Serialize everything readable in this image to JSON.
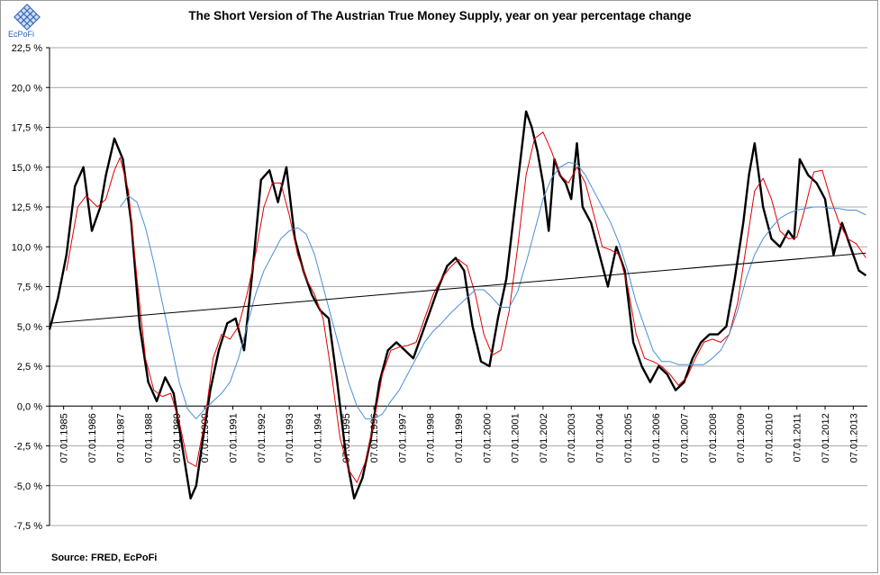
{
  "logo": {
    "text": "EcPoFi",
    "icon": "diamond-grid-logo",
    "color": "#2a62b8"
  },
  "source": "Source: FRED,  EcPoFi",
  "chart_data": {
    "type": "line",
    "title": "The Short Version of The Austrian True Money Supply, year on year percentage change",
    "xlabel": "",
    "ylabel": "",
    "ylim": [
      -7.5,
      22.5
    ],
    "xlim": [
      "01.01.1985",
      "31.12.2013"
    ],
    "grid": "horizontal",
    "legend": "none",
    "y_ticks": [
      "22,5 %",
      "20,0 %",
      "17,5 %",
      "15,0 %",
      "12,5 %",
      "10,0 %",
      "7,5 %",
      "5,0 %",
      "2,5 %",
      "0,0 %",
      "-2,5 %",
      "-5,0 %",
      "-7,5 %"
    ],
    "x_ticks": [
      "07.01.1985",
      "07.01.1986",
      "07.01.1987",
      "07.01.1988",
      "07.01.1989",
      "07.01.1990",
      "07.01.1991",
      "07.01.1992",
      "07.01.1993",
      "07.01.1994",
      "07.01.1995",
      "07.01.1996",
      "07.01.1997",
      "07.01.1998",
      "07.01.1999",
      "07.01.2000",
      "07.01.2001",
      "07.01.2002",
      "07.01.2003",
      "07.01.2004",
      "07.01.2005",
      "07.01.2006",
      "07.01.2007",
      "07.01.2008",
      "07.01.2009",
      "07.01.2010",
      "07.01.2011",
      "07.01.2012",
      "07.01.2013"
    ],
    "series": [
      {
        "color": "#000000",
        "x": [
          1985.0,
          1985.3,
          1985.6,
          1985.9,
          1986.2,
          1986.5,
          1986.8,
          1987.0,
          1987.3,
          1987.6,
          1987.9,
          1988.2,
          1988.5,
          1988.8,
          1989.1,
          1989.4,
          1989.7,
          1990.0,
          1990.2,
          1990.4,
          1990.7,
          1991.0,
          1991.3,
          1991.6,
          1991.9,
          1992.2,
          1992.5,
          1992.8,
          1993.1,
          1993.4,
          1993.7,
          1994.0,
          1994.3,
          1994.6,
          1994.9,
          1995.2,
          1995.5,
          1995.8,
          1996.1,
          1996.4,
          1996.7,
          1997.0,
          1997.3,
          1997.6,
          1997.9,
          1998.2,
          1998.5,
          1998.8,
          1999.1,
          1999.4,
          1999.7,
          2000.0,
          2000.3,
          2000.6,
          2000.9,
          2001.2,
          2001.5,
          2001.7,
          2001.9,
          2002.1,
          2002.3,
          2002.5,
          2002.7,
          2002.9,
          2003.1,
          2003.3,
          2003.5,
          2003.7,
          2003.9,
          2004.2,
          2004.5,
          2004.8,
          2005.1,
          2005.4,
          2005.7,
          2006.0,
          2006.3,
          2006.6,
          2006.9,
          2007.2,
          2007.5,
          2007.8,
          2008.1,
          2008.4,
          2008.7,
          2009.0,
          2009.3,
          2009.6,
          2009.8,
          2010.0,
          2010.3,
          2010.6,
          2010.9,
          2011.2,
          2011.4,
          2011.6,
          2011.9,
          2012.2,
          2012.5,
          2012.8,
          2013.1,
          2013.4,
          2013.7,
          2013.95
        ],
        "values": [
          4.8,
          6.8,
          9.5,
          13.8,
          15.0,
          11.0,
          12.5,
          14.5,
          16.8,
          15.5,
          11.5,
          5.0,
          1.5,
          0.3,
          1.8,
          0.8,
          -2.5,
          -5.8,
          -5.0,
          -2.5,
          1.0,
          3.5,
          5.2,
          5.5,
          3.5,
          8.5,
          14.2,
          14.8,
          12.8,
          15.0,
          10.5,
          8.5,
          7.0,
          6.0,
          5.5,
          1.5,
          -3.0,
          -5.8,
          -4.5,
          -2.0,
          1.5,
          3.5,
          4.0,
          3.5,
          3.0,
          4.5,
          6.0,
          7.5,
          8.8,
          9.3,
          8.5,
          5.0,
          2.8,
          2.5,
          5.5,
          8.0,
          12.5,
          15.5,
          18.5,
          17.5,
          16.0,
          14.0,
          11.0,
          15.5,
          14.5,
          14.0,
          13.0,
          16.5,
          12.5,
          11.5,
          9.5,
          7.5,
          10.0,
          8.5,
          4.0,
          2.5,
          1.5,
          2.5,
          2.0,
          1.0,
          1.5,
          3.0,
          4.0,
          4.5,
          4.5,
          5.0,
          8.0,
          11.5,
          14.5,
          16.5,
          12.5,
          10.5,
          10.0,
          11.0,
          10.5,
          15.5,
          14.5,
          14.0,
          13.0,
          9.5,
          11.5,
          10.0,
          8.5,
          8.2
        ]
      },
      {
        "color": "#e00000",
        "x": [
          1985.6,
          1986.0,
          1986.3,
          1986.7,
          1987.0,
          1987.3,
          1987.5,
          1987.8,
          1988.1,
          1988.4,
          1988.7,
          1989.0,
          1989.3,
          1989.6,
          1989.9,
          1990.2,
          1990.5,
          1990.8,
          1991.1,
          1991.4,
          1991.7,
          1992.0,
          1992.3,
          1992.6,
          1992.9,
          1993.2,
          1993.5,
          1993.8,
          1994.1,
          1994.4,
          1994.7,
          1995.0,
          1995.3,
          1995.6,
          1995.9,
          1996.2,
          1996.5,
          1996.8,
          1997.1,
          1997.4,
          1997.7,
          1998.0,
          1998.3,
          1998.6,
          1998.9,
          1999.2,
          1999.5,
          1999.8,
          2000.1,
          2000.4,
          2000.7,
          2001.0,
          2001.3,
          2001.6,
          2001.9,
          2002.2,
          2002.5,
          2002.8,
          2003.1,
          2003.4,
          2003.7,
          2004.0,
          2004.3,
          2004.6,
          2004.9,
          2005.2,
          2005.5,
          2005.8,
          2006.1,
          2006.4,
          2006.7,
          2007.0,
          2007.3,
          2007.6,
          2007.9,
          2008.2,
          2008.5,
          2008.8,
          2009.1,
          2009.4,
          2009.7,
          2010.0,
          2010.3,
          2010.6,
          2010.9,
          2011.2,
          2011.5,
          2011.8,
          2012.1,
          2012.4,
          2012.7,
          2013.0,
          2013.3,
          2013.6,
          2013.95
        ],
        "values": [
          8.5,
          12.5,
          13.2,
          12.5,
          13.0,
          14.8,
          15.6,
          13.5,
          8.0,
          3.0,
          1.0,
          0.6,
          0.8,
          -1.0,
          -3.5,
          -3.8,
          -1.0,
          3.0,
          4.5,
          4.2,
          5.0,
          7.0,
          9.5,
          12.5,
          14.0,
          14.0,
          12.0,
          9.5,
          8.0,
          7.0,
          5.5,
          2.0,
          -2.0,
          -4.0,
          -4.8,
          -3.5,
          -1.0,
          2.0,
          3.5,
          3.7,
          3.8,
          4.0,
          5.5,
          7.0,
          8.0,
          8.7,
          9.2,
          8.8,
          7.0,
          4.5,
          3.2,
          3.5,
          6.0,
          10.0,
          14.5,
          16.8,
          17.2,
          16.0,
          14.5,
          14.0,
          15.0,
          14.0,
          12.0,
          10.0,
          9.8,
          9.5,
          7.5,
          4.5,
          3.0,
          2.8,
          2.5,
          2.0,
          1.3,
          1.8,
          3.0,
          4.0,
          4.2,
          4.0,
          4.5,
          6.5,
          10.0,
          13.5,
          14.3,
          13.0,
          11.0,
          10.5,
          10.6,
          12.5,
          14.7,
          14.8,
          13.0,
          11.5,
          10.5,
          10.2,
          9.3
        ]
      },
      {
        "color": "#4a8fd4",
        "x": [
          1987.5,
          1987.8,
          1988.1,
          1988.4,
          1988.7,
          1989.0,
          1989.3,
          1989.6,
          1989.9,
          1990.2,
          1990.5,
          1990.8,
          1991.1,
          1991.4,
          1991.7,
          1992.0,
          1992.3,
          1992.6,
          1992.9,
          1993.2,
          1993.5,
          1993.8,
          1994.1,
          1994.4,
          1994.7,
          1995.0,
          1995.3,
          1995.6,
          1995.9,
          1996.2,
          1996.5,
          1996.8,
          1997.1,
          1997.4,
          1997.7,
          1998.0,
          1998.3,
          1998.6,
          1998.9,
          1999.2,
          1999.5,
          1999.8,
          2000.1,
          2000.4,
          2000.7,
          2001.0,
          2001.3,
          2001.6,
          2001.9,
          2002.2,
          2002.5,
          2002.8,
          2003.1,
          2003.4,
          2003.7,
          2004.0,
          2004.3,
          2004.6,
          2004.9,
          2005.2,
          2005.5,
          2005.8,
          2006.1,
          2006.4,
          2006.7,
          2007.0,
          2007.3,
          2007.6,
          2007.9,
          2008.2,
          2008.5,
          2008.8,
          2009.1,
          2009.4,
          2009.7,
          2010.0,
          2010.3,
          2010.6,
          2010.9,
          2011.2,
          2011.5,
          2011.8,
          2012.1,
          2012.4,
          2012.7,
          2013.0,
          2013.3,
          2013.6,
          2013.95
        ],
        "values": [
          12.5,
          13.2,
          12.8,
          11.2,
          9.0,
          6.5,
          4.0,
          1.5,
          -0.2,
          -0.8,
          -0.2,
          0.3,
          0.8,
          1.5,
          3.0,
          5.0,
          7.0,
          8.5,
          9.5,
          10.5,
          11.0,
          11.2,
          10.8,
          9.5,
          7.5,
          5.5,
          3.5,
          1.5,
          0.0,
          -0.8,
          -0.8,
          -0.5,
          0.3,
          1.0,
          2.0,
          3.0,
          4.0,
          4.7,
          5.2,
          5.8,
          6.3,
          6.8,
          7.3,
          7.3,
          6.8,
          6.2,
          6.2,
          7.2,
          9.0,
          11.0,
          13.0,
          14.3,
          15.0,
          15.3,
          15.2,
          14.5,
          13.5,
          12.5,
          11.5,
          10.2,
          8.5,
          6.5,
          5.0,
          3.5,
          2.8,
          2.8,
          2.6,
          2.6,
          2.6,
          2.6,
          3.0,
          3.5,
          4.5,
          6.0,
          8.0,
          9.5,
          10.5,
          11.2,
          11.8,
          12.1,
          12.3,
          12.4,
          12.5,
          12.5,
          12.4,
          12.4,
          12.3,
          12.3,
          12.0
        ]
      },
      {
        "color": "#000000",
        "x": [
          1985.0,
          2013.95
        ],
        "values": [
          5.2,
          9.6
        ]
      }
    ]
  }
}
